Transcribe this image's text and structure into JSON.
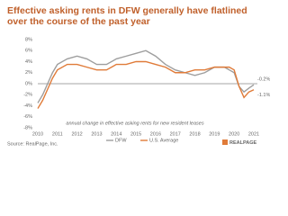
{
  "chart_data": {
    "type": "line",
    "title": "Effective asking rents in DFW generally have flatlined over the course of the past year",
    "annotation": "annual change in effective asking rents for new resident leases",
    "source": "Source: RealPage, Inc.",
    "logo": "REALPAGE",
    "x": [
      2010,
      2010.25,
      2010.5,
      2010.75,
      2011,
      2011.5,
      2012,
      2012.5,
      2013,
      2013.5,
      2014,
      2014.5,
      2015,
      2015.5,
      2016,
      2016.5,
      2017,
      2017.5,
      2018,
      2018.5,
      2019,
      2019.5,
      2019.75,
      2020,
      2020.25,
      2020.5,
      2020.75,
      2021
    ],
    "series": [
      {
        "name": "DFW",
        "color": "#9e9e9e",
        "end_label": "-0.2%",
        "values": [
          -3.5,
          -2,
          0,
          2,
          3.5,
          4.5,
          5,
          4.5,
          3.5,
          3.5,
          4.5,
          5,
          5.5,
          6,
          5,
          3.5,
          2.5,
          2,
          1.5,
          2,
          3,
          3,
          2.5,
          2,
          -0.5,
          -1.5,
          -0.8,
          -0.2
        ]
      },
      {
        "name": "U.S. Average",
        "color": "#e07b39",
        "end_label": "-1.1%",
        "values": [
          -4.5,
          -3,
          -1,
          1,
          2.5,
          3.5,
          3.5,
          3,
          2.5,
          2.5,
          3.5,
          3.5,
          4,
          4,
          3.5,
          3,
          2,
          2,
          2.5,
          2.5,
          3,
          3,
          3,
          2.5,
          -0.5,
          -2.5,
          -1.5,
          -1.1
        ]
      }
    ],
    "xlim": [
      2010,
      2021
    ],
    "xticks": [
      2010,
      2011,
      2012,
      2013,
      2014,
      2015,
      2016,
      2017,
      2018,
      2019,
      2020,
      2021
    ],
    "ylim": [
      -8,
      8
    ],
    "yticks": [
      {
        "value": 8,
        "label": "8%"
      },
      {
        "value": 6,
        "label": "6%"
      },
      {
        "value": 4,
        "label": "4%"
      },
      {
        "value": 2,
        "label": "2%"
      },
      {
        "value": 0,
        "label": "0%"
      },
      {
        "value": -2,
        "label": "-2%"
      },
      {
        "value": -4,
        "label": "-4%"
      },
      {
        "value": -6,
        "label": "-6%"
      },
      {
        "value": -8,
        "label": "-8%"
      }
    ],
    "grid": false
  }
}
